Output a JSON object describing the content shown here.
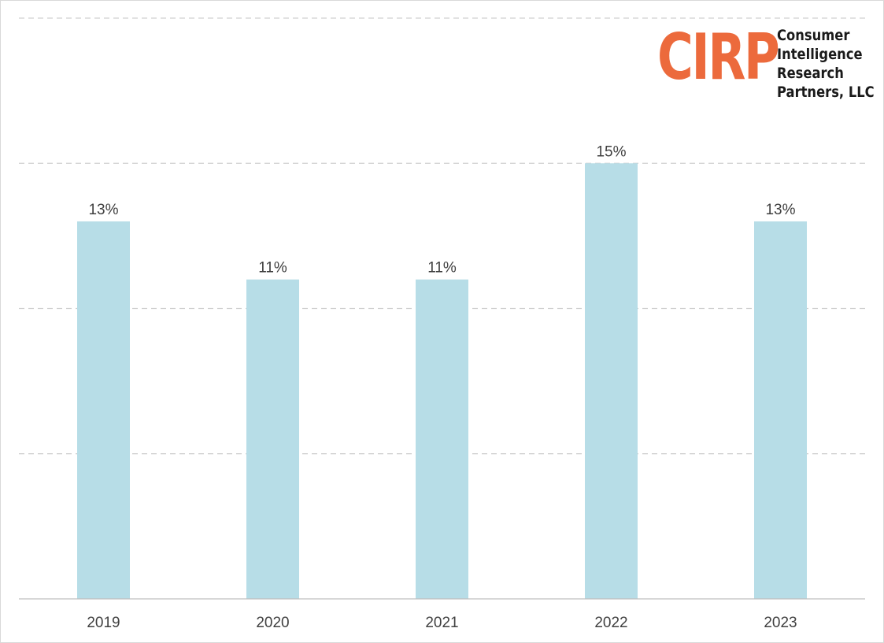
{
  "logo": {
    "mark": "CIRP",
    "lines": [
      "Consumer",
      "Intelligence",
      "Research",
      "Partners, LLC"
    ],
    "mark_color": "#ec6a3c"
  },
  "chart_data": {
    "type": "bar",
    "categories": [
      "2019",
      "2020",
      "2021",
      "2022",
      "2023"
    ],
    "values": [
      13,
      11,
      11,
      15,
      13
    ],
    "data_labels": [
      "13%",
      "11%",
      "11%",
      "15%",
      "13%"
    ],
    "title": "",
    "xlabel": "",
    "ylabel": "",
    "ylim": [
      0,
      20
    ],
    "grid": true,
    "bar_color": "#b7dde7"
  }
}
